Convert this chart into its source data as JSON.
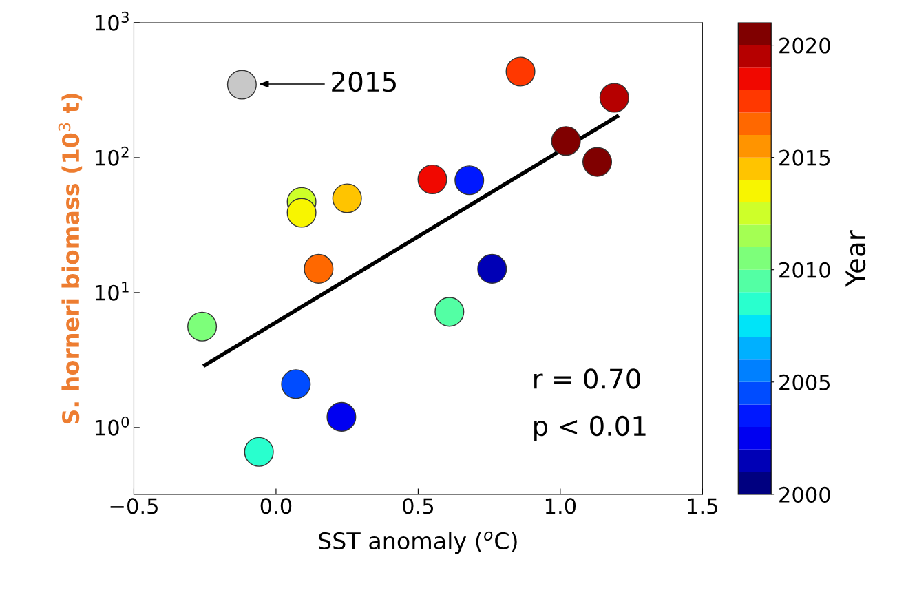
{
  "chart_data": {
    "type": "scatter",
    "xlabel": "SST anomaly ($^{o}$C)",
    "ylabel": "S. horneri biomass (10$^{3}$ t)",
    "clabel": "Year",
    "log": "y",
    "xlim": [
      -0.5,
      1.5
    ],
    "xticks": [
      {
        "value": -0.5,
        "label": "−0.5"
      },
      {
        "value": 0,
        "label": "0.0"
      },
      {
        "value": 0.5,
        "label": "0.5"
      },
      {
        "value": 1.0,
        "label": "1.0"
      },
      {
        "value": 1.5,
        "label": "1.5"
      }
    ],
    "ylim": [
      0.32,
      1000
    ],
    "yticks": [
      {
        "value": 1,
        "label": "10$^{0}$"
      },
      {
        "value": 10,
        "label": "10$^{1}$"
      },
      {
        "value": 100,
        "label": "10$^{2}$"
      },
      {
        "value": 1000,
        "label": "10$^{3}$"
      }
    ],
    "clim": [
      2000,
      2021
    ],
    "cticks": [
      2000,
      2005,
      2010,
      2015,
      2020
    ],
    "marker": "circle",
    "grid": false,
    "series": [
      {
        "x": [
          -0.12,
          0.86,
          1.19,
          1.02,
          1.13,
          0.55,
          0.68,
          0.09,
          0.09,
          0.25,
          0.15,
          0.76,
          0.61,
          -0.26,
          0.07,
          0.23,
          -0.06
        ],
        "values": [
          347,
          434,
          278,
          133,
          93,
          69,
          68,
          47,
          39,
          50,
          15,
          15,
          7.2,
          5.6,
          2.1,
          1.2,
          0.66
        ],
        "cvalues": [
          null,
          2017,
          2019,
          2020,
          2021,
          2018,
          2003,
          2012,
          2013,
          2014,
          2016,
          2001,
          2009,
          2010,
          2004,
          2002,
          2008
        ],
        "colors": [
          "#c8c8c8",
          null,
          null,
          null,
          null,
          null,
          null,
          null,
          null,
          null,
          null,
          null,
          null,
          null,
          null,
          null,
          null
        ]
      },
      {
        "type": "line",
        "x": [
          -0.25,
          1.2
        ],
        "values": [
          2.9,
          202
        ],
        "color": "#000000",
        "marker": "none"
      }
    ],
    "annotations": [
      "2015",
      "r = 0.70",
      "p < 0.01"
    ]
  }
}
